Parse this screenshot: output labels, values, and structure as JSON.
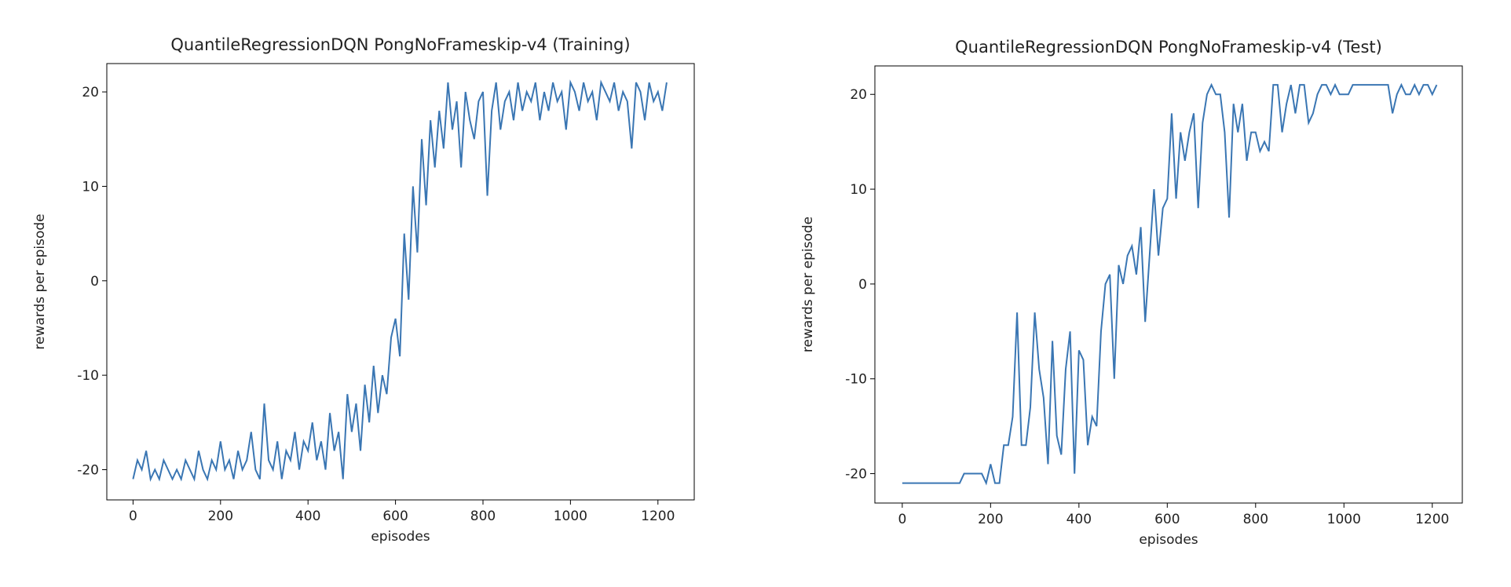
{
  "chart_data": [
    {
      "type": "line",
      "title": "QuantileRegressionDQN PongNoFrameskip-v4 (Training)",
      "x_label": "episodes",
      "y_label": "rewards per episode",
      "x": [
        0,
        10,
        20,
        30,
        40,
        50,
        60,
        70,
        80,
        90,
        100,
        110,
        120,
        130,
        140,
        150,
        160,
        170,
        180,
        190,
        200,
        210,
        220,
        230,
        240,
        250,
        260,
        270,
        280,
        290,
        300,
        310,
        320,
        330,
        340,
        350,
        360,
        370,
        380,
        390,
        400,
        410,
        420,
        430,
        440,
        450,
        460,
        470,
        480,
        490,
        500,
        510,
        520,
        530,
        540,
        550,
        560,
        570,
        580,
        590,
        600,
        610,
        620,
        630,
        640,
        650,
        660,
        670,
        680,
        690,
        700,
        710,
        720,
        730,
        740,
        750,
        760,
        770,
        780,
        790,
        800,
        810,
        820,
        830,
        840,
        850,
        860,
        870,
        880,
        890,
        900,
        910,
        920,
        930,
        940,
        950,
        960,
        970,
        980,
        990,
        1000,
        1010,
        1020,
        1030,
        1040,
        1050,
        1060,
        1070,
        1080,
        1090,
        1100,
        1110,
        1120,
        1130,
        1140,
        1150,
        1160,
        1170,
        1180,
        1190,
        1200,
        1210,
        1220
      ],
      "series": [
        {
          "color": "#3a76b3",
          "values": [
            -21,
            -19,
            -20,
            -18,
            -21,
            -20,
            -21,
            -19,
            -20,
            -21,
            -20,
            -21,
            -19,
            -20,
            -21,
            -18,
            -20,
            -21,
            -19,
            -20,
            -17,
            -20,
            -19,
            -21,
            -18,
            -20,
            -19,
            -16,
            -20,
            -21,
            -13,
            -19,
            -20,
            -17,
            -21,
            -18,
            -19,
            -16,
            -20,
            -17,
            -18,
            -15,
            -19,
            -17,
            -20,
            -14,
            -18,
            -16,
            -21,
            -12,
            -16,
            -13,
            -18,
            -11,
            -15,
            -9,
            -14,
            -10,
            -12,
            -6,
            -4,
            -8,
            5,
            -2,
            10,
            3,
            15,
            8,
            17,
            12,
            18,
            14,
            21,
            16,
            19,
            12,
            20,
            17,
            15,
            19,
            20,
            9,
            18,
            21,
            16,
            19,
            20,
            17,
            21,
            18,
            20,
            19,
            21,
            17,
            20,
            18,
            21,
            19,
            20,
            16,
            21,
            20,
            18,
            21,
            19,
            20,
            17,
            21,
            20,
            19,
            21,
            18,
            20,
            19,
            14,
            21,
            20,
            17,
            21,
            19,
            20,
            18,
            21
          ]
        }
      ],
      "xlim": [
        -60,
        1283
      ],
      "ylim": [
        -23.2,
        23
      ],
      "xticks": [
        0,
        200,
        400,
        600,
        800,
        1000,
        1200
      ],
      "yticks": [
        -20,
        -10,
        0,
        10,
        20
      ]
    },
    {
      "type": "line",
      "title": "QuantileRegressionDQN PongNoFrameskip-v4 (Test)",
      "x_label": "episodes",
      "y_label": "rewards per episode",
      "x": [
        0,
        10,
        20,
        30,
        40,
        50,
        60,
        70,
        80,
        90,
        100,
        110,
        120,
        130,
        140,
        150,
        160,
        170,
        180,
        190,
        200,
        210,
        220,
        230,
        240,
        250,
        260,
        270,
        280,
        290,
        300,
        310,
        320,
        330,
        340,
        350,
        360,
        370,
        380,
        390,
        400,
        410,
        420,
        430,
        440,
        450,
        460,
        470,
        480,
        490,
        500,
        510,
        520,
        530,
        540,
        550,
        560,
        570,
        580,
        590,
        600,
        610,
        620,
        630,
        640,
        650,
        660,
        670,
        680,
        690,
        700,
        710,
        720,
        730,
        740,
        750,
        760,
        770,
        780,
        790,
        800,
        810,
        820,
        830,
        840,
        850,
        860,
        870,
        880,
        890,
        900,
        910,
        920,
        930,
        940,
        950,
        960,
        970,
        980,
        990,
        1000,
        1010,
        1020,
        1030,
        1040,
        1050,
        1060,
        1070,
        1080,
        1090,
        1100,
        1110,
        1120,
        1130,
        1140,
        1150,
        1160,
        1170,
        1180,
        1190,
        1200,
        1210
      ],
      "series": [
        {
          "color": "#3a76b3",
          "values": [
            -21,
            -21,
            -21,
            -21,
            -21,
            -21,
            -21,
            -21,
            -21,
            -21,
            -21,
            -21,
            -21,
            -21,
            -20,
            -20,
            -20,
            -20,
            -20,
            -21,
            -19,
            -21,
            -21,
            -17,
            -17,
            -14,
            -3,
            -17,
            -17,
            -13,
            -3,
            -9,
            -12,
            -19,
            -6,
            -16,
            -18,
            -9,
            -5,
            -20,
            -7,
            -8,
            -17,
            -14,
            -15,
            -5,
            0,
            1,
            -10,
            2,
            0,
            3,
            4,
            1,
            6,
            -4,
            3,
            10,
            3,
            8,
            9,
            18,
            9,
            16,
            13,
            16,
            18,
            8,
            17,
            20,
            21,
            20,
            20,
            16,
            7,
            19,
            16,
            19,
            13,
            16,
            16,
            14,
            15,
            14,
            21,
            21,
            16,
            19,
            21,
            18,
            21,
            21,
            17,
            18,
            20,
            21,
            21,
            20,
            21,
            20,
            20,
            20,
            21,
            21,
            21,
            21,
            21,
            21,
            21,
            21,
            21,
            18,
            20,
            21,
            20,
            20,
            21,
            20,
            21,
            21,
            20,
            21
          ]
        }
      ],
      "xlim": [
        -62,
        1268
      ],
      "ylim": [
        -23.1,
        23
      ],
      "xticks": [
        0,
        200,
        400,
        600,
        800,
        1000,
        1200
      ],
      "yticks": [
        -20,
        -10,
        0,
        10,
        20
      ]
    }
  ]
}
